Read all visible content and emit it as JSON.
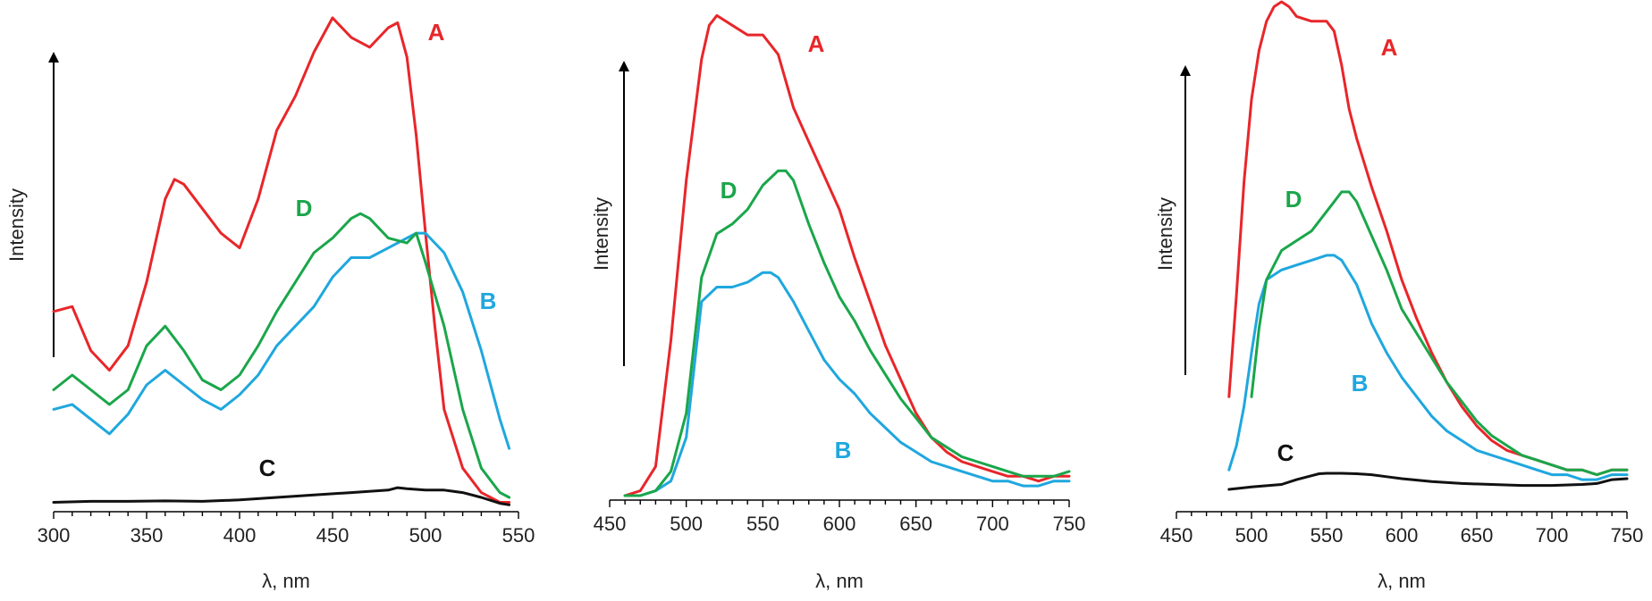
{
  "colors": {
    "A": "#e8262a",
    "B": "#1fa7de",
    "C": "#111111",
    "D": "#1aa64a",
    "axis": "#000000"
  },
  "chart_data": [
    {
      "type": "line",
      "xlabel": "λ, nm",
      "ylabel": "Intensity",
      "xlim": [
        300,
        550
      ],
      "ylim": [
        0,
        1
      ],
      "xticks": [
        300,
        350,
        400,
        450,
        500,
        550
      ],
      "series": [
        {
          "name": "A",
          "color": "#e8262a",
          "x": [
            300,
            310,
            320,
            330,
            340,
            350,
            360,
            365,
            370,
            380,
            390,
            400,
            410,
            420,
            430,
            440,
            450,
            460,
            470,
            480,
            485,
            490,
            495,
            500,
            505,
            510,
            520,
            530,
            540,
            545
          ],
          "y": [
            0.4,
            0.41,
            0.32,
            0.28,
            0.33,
            0.46,
            0.63,
            0.67,
            0.66,
            0.61,
            0.56,
            0.53,
            0.63,
            0.77,
            0.84,
            0.93,
            1.0,
            0.96,
            0.94,
            0.98,
            0.99,
            0.92,
            0.76,
            0.56,
            0.37,
            0.2,
            0.08,
            0.03,
            0.01,
            0.01
          ]
        },
        {
          "name": "B",
          "color": "#1fa7de",
          "x": [
            300,
            310,
            320,
            330,
            340,
            350,
            360,
            370,
            380,
            390,
            400,
            410,
            420,
            430,
            440,
            450,
            460,
            470,
            480,
            490,
            495,
            500,
            510,
            520,
            530,
            540,
            545
          ],
          "y": [
            0.2,
            0.21,
            0.18,
            0.15,
            0.19,
            0.25,
            0.28,
            0.25,
            0.22,
            0.2,
            0.23,
            0.27,
            0.33,
            0.37,
            0.41,
            0.47,
            0.51,
            0.51,
            0.53,
            0.55,
            0.56,
            0.56,
            0.52,
            0.44,
            0.32,
            0.18,
            0.12
          ]
        },
        {
          "name": "C",
          "color": "#111111",
          "x": [
            300,
            320,
            340,
            360,
            380,
            400,
            420,
            440,
            460,
            480,
            485,
            490,
            500,
            510,
            520,
            530,
            540,
            545
          ],
          "y": [
            0.01,
            0.012,
            0.012,
            0.013,
            0.012,
            0.015,
            0.02,
            0.025,
            0.03,
            0.035,
            0.04,
            0.038,
            0.035,
            0.035,
            0.03,
            0.02,
            0.008,
            0.005
          ]
        },
        {
          "name": "D",
          "color": "#1aa64a",
          "x": [
            300,
            310,
            320,
            330,
            340,
            350,
            360,
            370,
            380,
            390,
            400,
            410,
            420,
            430,
            440,
            450,
            460,
            465,
            470,
            480,
            490,
            495,
            500,
            510,
            520,
            530,
            540,
            545
          ],
          "y": [
            0.24,
            0.27,
            0.24,
            0.21,
            0.24,
            0.33,
            0.37,
            0.32,
            0.26,
            0.24,
            0.27,
            0.33,
            0.4,
            0.46,
            0.52,
            0.55,
            0.59,
            0.6,
            0.59,
            0.55,
            0.54,
            0.56,
            0.5,
            0.37,
            0.2,
            0.08,
            0.03,
            0.02
          ]
        }
      ]
    },
    {
      "type": "line",
      "xlabel": "λ, nm",
      "ylabel": "Intensity",
      "xlim": [
        450,
        750
      ],
      "ylim": [
        0,
        1
      ],
      "xticks": [
        450,
        500,
        550,
        600,
        650,
        700,
        750
      ],
      "series": [
        {
          "name": "A",
          "color": "#e8262a",
          "x": [
            460,
            470,
            480,
            490,
            500,
            510,
            515,
            520,
            525,
            530,
            540,
            550,
            560,
            570,
            580,
            590,
            600,
            610,
            620,
            630,
            640,
            650,
            660,
            670,
            680,
            690,
            700,
            710,
            720,
            730,
            740,
            750
          ],
          "y": [
            0.0,
            0.01,
            0.06,
            0.32,
            0.65,
            0.9,
            0.97,
            0.99,
            0.98,
            0.97,
            0.95,
            0.95,
            0.91,
            0.8,
            0.73,
            0.66,
            0.59,
            0.49,
            0.4,
            0.31,
            0.24,
            0.17,
            0.12,
            0.09,
            0.07,
            0.06,
            0.05,
            0.04,
            0.04,
            0.03,
            0.04,
            0.04
          ]
        },
        {
          "name": "B",
          "color": "#1fa7de",
          "x": [
            460,
            470,
            480,
            490,
            500,
            510,
            520,
            530,
            540,
            550,
            555,
            560,
            570,
            580,
            590,
            600,
            610,
            620,
            630,
            640,
            650,
            660,
            670,
            680,
            690,
            700,
            710,
            720,
            730,
            740,
            750
          ],
          "y": [
            0.0,
            0.0,
            0.01,
            0.03,
            0.12,
            0.4,
            0.43,
            0.43,
            0.44,
            0.46,
            0.46,
            0.45,
            0.4,
            0.34,
            0.28,
            0.24,
            0.21,
            0.17,
            0.14,
            0.11,
            0.09,
            0.07,
            0.06,
            0.05,
            0.04,
            0.03,
            0.03,
            0.02,
            0.02,
            0.03,
            0.03
          ]
        },
        {
          "name": "D",
          "color": "#1aa64a",
          "x": [
            460,
            470,
            480,
            490,
            500,
            510,
            520,
            530,
            540,
            550,
            560,
            565,
            570,
            580,
            590,
            600,
            610,
            620,
            630,
            640,
            650,
            660,
            670,
            680,
            690,
            700,
            710,
            720,
            730,
            740,
            750
          ],
          "y": [
            0.0,
            0.0,
            0.01,
            0.05,
            0.17,
            0.45,
            0.54,
            0.56,
            0.59,
            0.64,
            0.67,
            0.67,
            0.65,
            0.56,
            0.48,
            0.41,
            0.36,
            0.3,
            0.25,
            0.2,
            0.16,
            0.12,
            0.1,
            0.08,
            0.07,
            0.06,
            0.05,
            0.04,
            0.04,
            0.04,
            0.05
          ]
        }
      ]
    },
    {
      "type": "line",
      "xlabel": "λ, nm",
      "ylabel": "Intensity",
      "xlim": [
        450,
        750
      ],
      "ylim": [
        0,
        1
      ],
      "xticks": [
        450,
        500,
        550,
        600,
        650,
        700,
        750
      ],
      "series": [
        {
          "name": "A",
          "color": "#e8262a",
          "x": [
            485,
            490,
            495,
            500,
            505,
            510,
            515,
            520,
            525,
            530,
            540,
            550,
            555,
            560,
            565,
            570,
            580,
            590,
            600,
            610,
            620,
            630,
            640,
            650,
            660,
            670,
            680,
            690,
            700,
            710,
            720,
            730,
            740,
            750
          ],
          "y": [
            0.19,
            0.4,
            0.63,
            0.8,
            0.9,
            0.96,
            0.99,
            1.0,
            0.99,
            0.97,
            0.96,
            0.96,
            0.94,
            0.87,
            0.78,
            0.72,
            0.62,
            0.53,
            0.43,
            0.35,
            0.28,
            0.22,
            0.17,
            0.13,
            0.1,
            0.08,
            0.07,
            0.06,
            0.05,
            0.04,
            0.04,
            0.03,
            0.04,
            0.04
          ]
        },
        {
          "name": "B",
          "color": "#1fa7de",
          "x": [
            485,
            490,
            495,
            500,
            505,
            510,
            520,
            530,
            540,
            550,
            555,
            560,
            570,
            580,
            590,
            600,
            610,
            620,
            630,
            640,
            650,
            660,
            670,
            680,
            690,
            700,
            710,
            720,
            730,
            740,
            750
          ],
          "y": [
            0.04,
            0.09,
            0.17,
            0.28,
            0.38,
            0.43,
            0.45,
            0.46,
            0.47,
            0.48,
            0.48,
            0.47,
            0.42,
            0.34,
            0.28,
            0.23,
            0.19,
            0.15,
            0.12,
            0.1,
            0.08,
            0.07,
            0.06,
            0.05,
            0.04,
            0.03,
            0.03,
            0.02,
            0.02,
            0.03,
            0.03
          ]
        },
        {
          "name": "C",
          "color": "#111111",
          "x": [
            485,
            500,
            520,
            530,
            540,
            545,
            550,
            560,
            570,
            580,
            590,
            600,
            620,
            640,
            660,
            680,
            700,
            720,
            730,
            740,
            750
          ],
          "y": [
            0.0,
            0.005,
            0.01,
            0.02,
            0.028,
            0.032,
            0.033,
            0.033,
            0.032,
            0.03,
            0.026,
            0.022,
            0.016,
            0.012,
            0.01,
            0.008,
            0.008,
            0.01,
            0.012,
            0.02,
            0.022
          ]
        },
        {
          "name": "D",
          "color": "#1aa64a",
          "x": [
            500,
            505,
            510,
            520,
            530,
            540,
            550,
            555,
            560,
            565,
            570,
            580,
            590,
            600,
            610,
            620,
            630,
            640,
            650,
            660,
            670,
            680,
            690,
            700,
            710,
            720,
            730,
            740,
            750
          ],
          "y": [
            0.19,
            0.33,
            0.43,
            0.49,
            0.51,
            0.53,
            0.57,
            0.59,
            0.61,
            0.61,
            0.59,
            0.52,
            0.45,
            0.37,
            0.32,
            0.27,
            0.22,
            0.18,
            0.14,
            0.11,
            0.09,
            0.07,
            0.06,
            0.05,
            0.04,
            0.04,
            0.03,
            0.04,
            0.04
          ]
        }
      ]
    }
  ]
}
